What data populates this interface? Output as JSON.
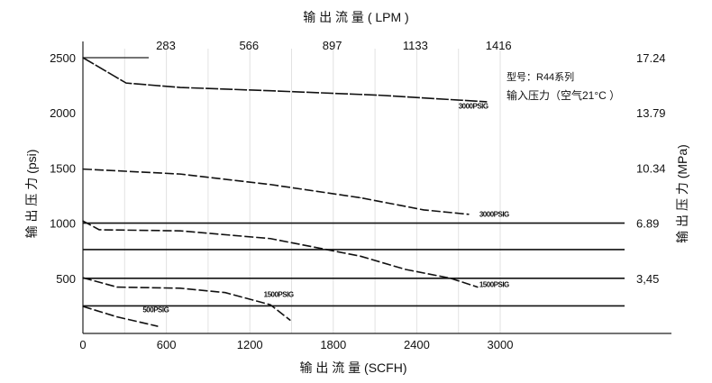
{
  "chart_data": {
    "type": "line",
    "title": "输 出 流 量 ( LPM )",
    "xlabel": "输 出 流 量 (SCFH)",
    "ylabel": "输 出 压 力 (psi)",
    "ylabel_right": "输 出 压 力 (MPa)",
    "xlim": [
      0,
      3000
    ],
    "ylim": [
      0,
      2500
    ],
    "x_ticks": [
      "0",
      "600",
      "1200",
      "1800",
      "2400",
      "3000"
    ],
    "y_ticks": [
      "500",
      "1000",
      "1500",
      "2000",
      "2500"
    ],
    "top_ticks": [
      "283",
      "566",
      "897",
      "1133",
      "1416"
    ],
    "right_ticks": [
      "3,45",
      "6.89",
      "10.34",
      "13.79",
      "17.24"
    ],
    "legend": [
      "型号：R44系列",
      "输入压力（空气21°C ）"
    ],
    "reference_lines": [
      1000,
      760,
      500,
      250
    ],
    "series": [
      {
        "name": "3000PSIG",
        "x": [
          0,
          311,
          700,
          1348,
          2126,
          2903
        ],
        "y": [
          2500,
          2270,
          2230,
          2200,
          2160,
          2100
        ]
      },
      {
        "name": "3000PSIG",
        "x": [
          0,
          700,
          1348,
          1996,
          2450,
          2774
        ],
        "y": [
          1490,
          1445,
          1350,
          1230,
          1120,
          1080
        ]
      },
      {
        "name": "1500PSIG",
        "x": [
          0,
          117,
          700,
          1348,
          1996,
          2320,
          2644,
          2838
        ],
        "y": [
          1020,
          940,
          930,
          860,
          700,
          580,
          500,
          420
        ]
      },
      {
        "name": "1500PSIG",
        "x": [
          0,
          246,
          700,
          1024,
          1348,
          1490
        ],
        "y": [
          505,
          420,
          410,
          370,
          260,
          120
        ]
      },
      {
        "name": "500PSIG",
        "x": [
          0,
          246,
          538
        ],
        "y": [
          245,
          150,
          65
        ]
      }
    ],
    "series_label_at": [
      [
        2700,
        2040
      ],
      [
        2850,
        1060
      ],
      [
        2850,
        420
      ],
      [
        1300,
        330
      ],
      [
        430,
        190
      ]
    ]
  }
}
